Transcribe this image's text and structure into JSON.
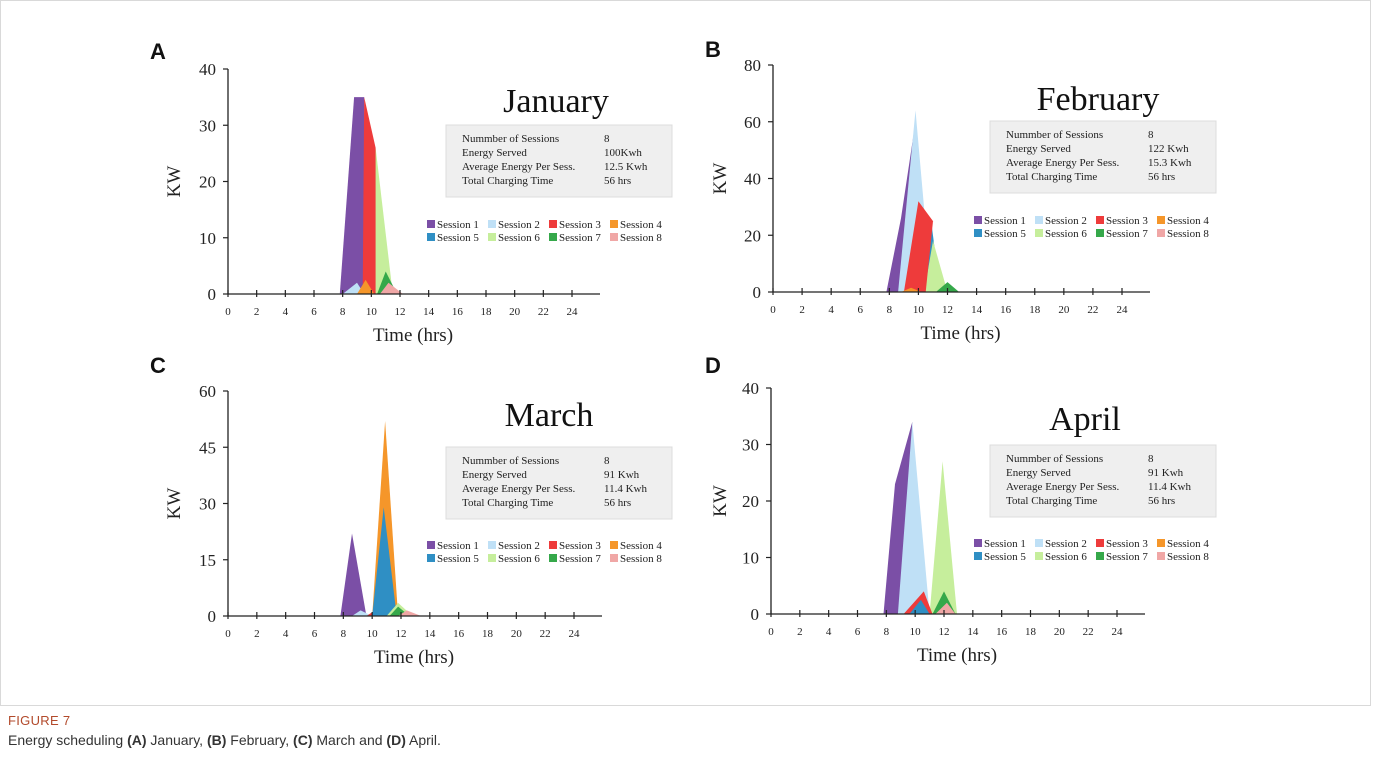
{
  "figure": {
    "label": "FIGURE 7",
    "caption_parts": [
      {
        "text": "Energy scheduling ",
        "bold": false
      },
      {
        "text": "(A)",
        "bold": true
      },
      {
        "text": " January, ",
        "bold": false
      },
      {
        "text": "(B)",
        "bold": true
      },
      {
        "text": " February, ",
        "bold": false
      },
      {
        "text": "(C)",
        "bold": true
      },
      {
        "text": " March and ",
        "bold": false
      },
      {
        "text": "(D)",
        "bold": true
      },
      {
        "text": " April.",
        "bold": false
      }
    ]
  },
  "colors": {
    "Session 1": "#7b4fa6",
    "Session 2": "#bfe0f6",
    "Session 3": "#ee3b3b",
    "Session 4": "#f5962a",
    "Session 5": "#2f8fc4",
    "Session 6": "#c6ee9c",
    "Session 7": "#35a84a",
    "Session 8": "#f0a7a6",
    "infobox": "#efefef",
    "axis": "#222222"
  },
  "chart_data": [
    {
      "type": "area",
      "panel": "A",
      "title": "January",
      "xlabel": "Time (hrs)",
      "ylabel": "KW",
      "xticks": [
        0,
        2,
        4,
        6,
        8,
        10,
        12,
        14,
        16,
        18,
        20,
        22,
        24
      ],
      "yticks": [
        0,
        10,
        20,
        30,
        40
      ],
      "xlim": [
        0,
        24
      ],
      "ylim": [
        0,
        40
      ],
      "stats": [
        {
          "label": "Nummber of Sessions",
          "value": "8"
        },
        {
          "label": "Energy Served",
          "value": "100Kwh"
        },
        {
          "label": "Average Energy Per Sess.",
          "value": "12.5 Kwh"
        },
        {
          "label": "Total Charging Time",
          "value": "56 hrs"
        }
      ],
      "legend": [
        "Session 1",
        "Session 2",
        "Session 3",
        "Session 4",
        "Session 5",
        "Session 6",
        "Session 7",
        "Session 8"
      ],
      "series": [
        {
          "name": "Session 1",
          "points": [
            [
              7.8,
              0
            ],
            [
              8.8,
              35
            ],
            [
              9.5,
              35
            ],
            [
              9.6,
              0
            ]
          ]
        },
        {
          "name": "Session 2",
          "points": [
            [
              8.0,
              0
            ],
            [
              9.0,
              2
            ],
            [
              9.5,
              0
            ]
          ]
        },
        {
          "name": "Session 6",
          "points": [
            [
              9.6,
              0
            ],
            [
              10.3,
              26
            ],
            [
              11.5,
              0
            ]
          ]
        },
        {
          "name": "Session 3",
          "points": [
            [
              9.4,
              0
            ],
            [
              9.5,
              35
            ],
            [
              10.3,
              26
            ],
            [
              10.3,
              0
            ]
          ]
        },
        {
          "name": "Session 4",
          "points": [
            [
              9.0,
              0
            ],
            [
              9.6,
              2.5
            ],
            [
              10.2,
              0
            ]
          ]
        },
        {
          "name": "Session 7",
          "points": [
            [
              10.4,
              0
            ],
            [
              11.0,
              4
            ],
            [
              11.8,
              0
            ]
          ]
        },
        {
          "name": "Session 8",
          "points": [
            [
              10.6,
              0
            ],
            [
              11.2,
              2
            ],
            [
              12.2,
              0
            ]
          ]
        }
      ]
    },
    {
      "type": "area",
      "panel": "B",
      "title": "February",
      "xlabel": "Time (hrs)",
      "ylabel": "KW",
      "xticks": [
        0,
        2,
        4,
        6,
        8,
        10,
        12,
        14,
        16,
        18,
        20,
        22,
        24
      ],
      "yticks": [
        0,
        20,
        40,
        60,
        80
      ],
      "xlim": [
        0,
        24
      ],
      "ylim": [
        0,
        80
      ],
      "stats": [
        {
          "label": "Nummber of Sessions",
          "value": "8"
        },
        {
          "label": "Energy Served",
          "value": "122 Kwh"
        },
        {
          "label": "Average Energy Per Sess.",
          "value": "15.3 Kwh"
        },
        {
          "label": "Total Charging Time",
          "value": "56 hrs"
        }
      ],
      "legend": [
        "Session 1",
        "Session 2",
        "Session 3",
        "Session 4",
        "Session 5",
        "Session 6",
        "Session 7",
        "Session 8"
      ],
      "series": [
        {
          "name": "Session 1",
          "points": [
            [
              7.8,
              0
            ],
            [
              8.8,
              26
            ],
            [
              9.8,
              60
            ],
            [
              9.8,
              0
            ]
          ]
        },
        {
          "name": "Session 2",
          "points": [
            [
              8.6,
              0
            ],
            [
              9.8,
              64
            ],
            [
              10.9,
              0
            ]
          ]
        },
        {
          "name": "Session 5",
          "points": [
            [
              10.0,
              0
            ],
            [
              10.9,
              24
            ],
            [
              11.5,
              0
            ]
          ]
        },
        {
          "name": "Session 6",
          "points": [
            [
              10.4,
              0
            ],
            [
              11.0,
              18
            ],
            [
              12.0,
              0
            ]
          ]
        },
        {
          "name": "Session 3",
          "points": [
            [
              9.0,
              0
            ],
            [
              10.0,
              32
            ],
            [
              11.0,
              25
            ],
            [
              10.5,
              0
            ]
          ]
        },
        {
          "name": "Session 4",
          "points": [
            [
              8.8,
              0
            ],
            [
              9.5,
              1.5
            ],
            [
              10.2,
              0
            ]
          ]
        },
        {
          "name": "Session 7",
          "points": [
            [
              11.2,
              0
            ],
            [
              12.0,
              3.5
            ],
            [
              12.8,
              0
            ]
          ]
        }
      ]
    },
    {
      "type": "area",
      "panel": "C",
      "title": "March",
      "xlabel": "Time (hrs)",
      "ylabel": "KW",
      "xticks": [
        0,
        2,
        4,
        6,
        8,
        10,
        12,
        14,
        16,
        18,
        20,
        22,
        24
      ],
      "yticks": [
        0,
        15,
        30,
        45,
        60
      ],
      "xlim": [
        0,
        24
      ],
      "ylim": [
        0,
        60
      ],
      "stats": [
        {
          "label": "Nummber of Sessions",
          "value": "8"
        },
        {
          "label": "Energy Served",
          "value": "91 Kwh"
        },
        {
          "label": "Average Energy Per Sess.",
          "value": "11.4 Kwh"
        },
        {
          "label": "Total Charging Time",
          "value": "56 hrs"
        }
      ],
      "legend": [
        "Session 1",
        "Session 2",
        "Session 3",
        "Session 4",
        "Session 5",
        "Session 6",
        "Session 7",
        "Session 8"
      ],
      "series": [
        {
          "name": "Session 1",
          "points": [
            [
              7.8,
              0
            ],
            [
              8.6,
              22
            ],
            [
              9.6,
              0
            ]
          ]
        },
        {
          "name": "Session 2",
          "points": [
            [
              8.6,
              0
            ],
            [
              9.2,
              1.5
            ],
            [
              10.0,
              0
            ]
          ]
        },
        {
          "name": "Session 3",
          "points": [
            [
              9.6,
              0
            ],
            [
              10.0,
              1
            ],
            [
              10.4,
              0
            ]
          ]
        },
        {
          "name": "Session 4",
          "points": [
            [
              10.0,
              0
            ],
            [
              10.9,
              52
            ],
            [
              11.8,
              0
            ]
          ]
        },
        {
          "name": "Session 5",
          "points": [
            [
              10.0,
              0
            ],
            [
              10.8,
              29
            ],
            [
              11.7,
              0
            ]
          ]
        },
        {
          "name": "Session 6",
          "points": [
            [
              11.0,
              0
            ],
            [
              11.8,
              3.5
            ],
            [
              12.8,
              0
            ]
          ]
        },
        {
          "name": "Session 7",
          "points": [
            [
              11.2,
              0
            ],
            [
              11.8,
              2.5
            ],
            [
              12.6,
              0
            ]
          ]
        },
        {
          "name": "Session 8",
          "points": [
            [
              11.8,
              0
            ],
            [
              12.4,
              1.5
            ],
            [
              13.4,
              0
            ]
          ]
        }
      ]
    },
    {
      "type": "area",
      "panel": "D",
      "title": "April",
      "xlabel": "Time (hrs)",
      "ylabel": "KW",
      "xticks": [
        0,
        2,
        4,
        6,
        8,
        10,
        12,
        14,
        16,
        18,
        20,
        22,
        24
      ],
      "yticks": [
        0,
        10,
        20,
        30,
        40
      ],
      "xlim": [
        0,
        24
      ],
      "ylim": [
        0,
        40
      ],
      "stats": [
        {
          "label": "Nummber of Sessions",
          "value": "8"
        },
        {
          "label": "Energy Served",
          "value": "91 Kwh"
        },
        {
          "label": "Average Energy Per Sess.",
          "value": "11.4 Kwh"
        },
        {
          "label": "Total Charging Time",
          "value": "56 hrs"
        }
      ],
      "legend": [
        "Session 1",
        "Session 2",
        "Session 3",
        "Session 4",
        "Session 5",
        "Session 6",
        "Session 7",
        "Session 8"
      ],
      "series": [
        {
          "name": "Session 1",
          "points": [
            [
              7.8,
              0
            ],
            [
              8.6,
              23
            ],
            [
              9.8,
              34
            ],
            [
              9.9,
              0
            ]
          ]
        },
        {
          "name": "Session 2",
          "points": [
            [
              8.8,
              0
            ],
            [
              9.8,
              34
            ],
            [
              11.0,
              0
            ]
          ]
        },
        {
          "name": "Session 6",
          "points": [
            [
              11.0,
              0
            ],
            [
              11.9,
              27
            ],
            [
              12.9,
              0
            ]
          ]
        },
        {
          "name": "Session 3",
          "points": [
            [
              9.2,
              0
            ],
            [
              10.6,
              4
            ],
            [
              11.2,
              0
            ]
          ]
        },
        {
          "name": "Session 5",
          "points": [
            [
              9.6,
              0
            ],
            [
              10.4,
              2.5
            ],
            [
              11.0,
              0
            ]
          ]
        },
        {
          "name": "Session 7",
          "points": [
            [
              11.2,
              0
            ],
            [
              12.0,
              4
            ],
            [
              12.8,
              0
            ]
          ]
        },
        {
          "name": "Session 8",
          "points": [
            [
              11.4,
              0
            ],
            [
              12.2,
              2
            ],
            [
              12.8,
              0
            ]
          ]
        }
      ]
    }
  ]
}
